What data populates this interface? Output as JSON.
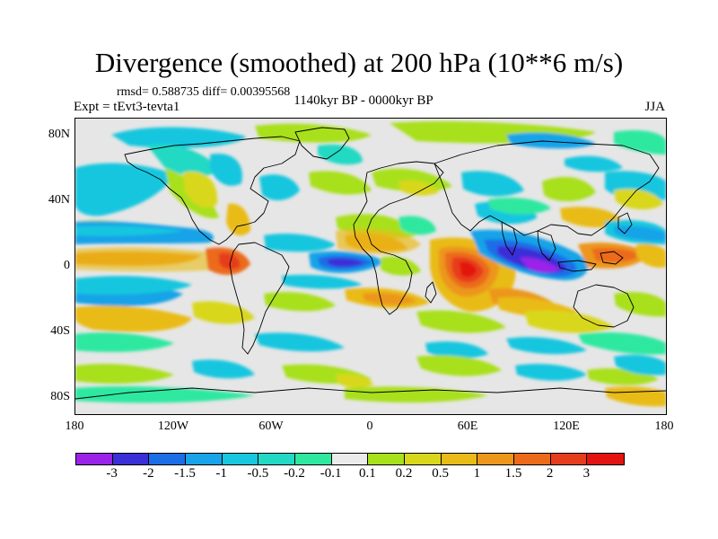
{
  "title": "Divergence (smoothed) at 200 hPa (10**6 m/s)",
  "stats": "rmsd= 0.588735 diff= 0.00395568",
  "experiment": "Expt = tEvt3-tevta1",
  "period": "1140kyr BP - 0000kyr BP",
  "season": "JJA",
  "axes": {
    "y_ticks": [
      "80N",
      "40N",
      "0",
      "40S",
      "80S"
    ],
    "x_ticks": [
      "180",
      "120W",
      "60W",
      "0",
      "60E",
      "120E",
      "180"
    ]
  },
  "colorbar": {
    "labels": [
      "-3",
      "-2",
      "-1.5",
      "-1",
      "-0.5",
      "-0.2",
      "-0.1",
      "0.1",
      "0.2",
      "0.5",
      "1",
      "1.5",
      "2",
      "3"
    ],
    "colors": [
      "#9b22e8",
      "#3b2fd8",
      "#1b6ee6",
      "#19a3e8",
      "#18c6df",
      "#21d9c4",
      "#2fe8a0",
      "#ebebeb",
      "#a8e01b",
      "#d9d71c",
      "#e9bb19",
      "#ec961a",
      "#ec6b1a",
      "#e63d1c",
      "#e3130f"
    ]
  }
}
